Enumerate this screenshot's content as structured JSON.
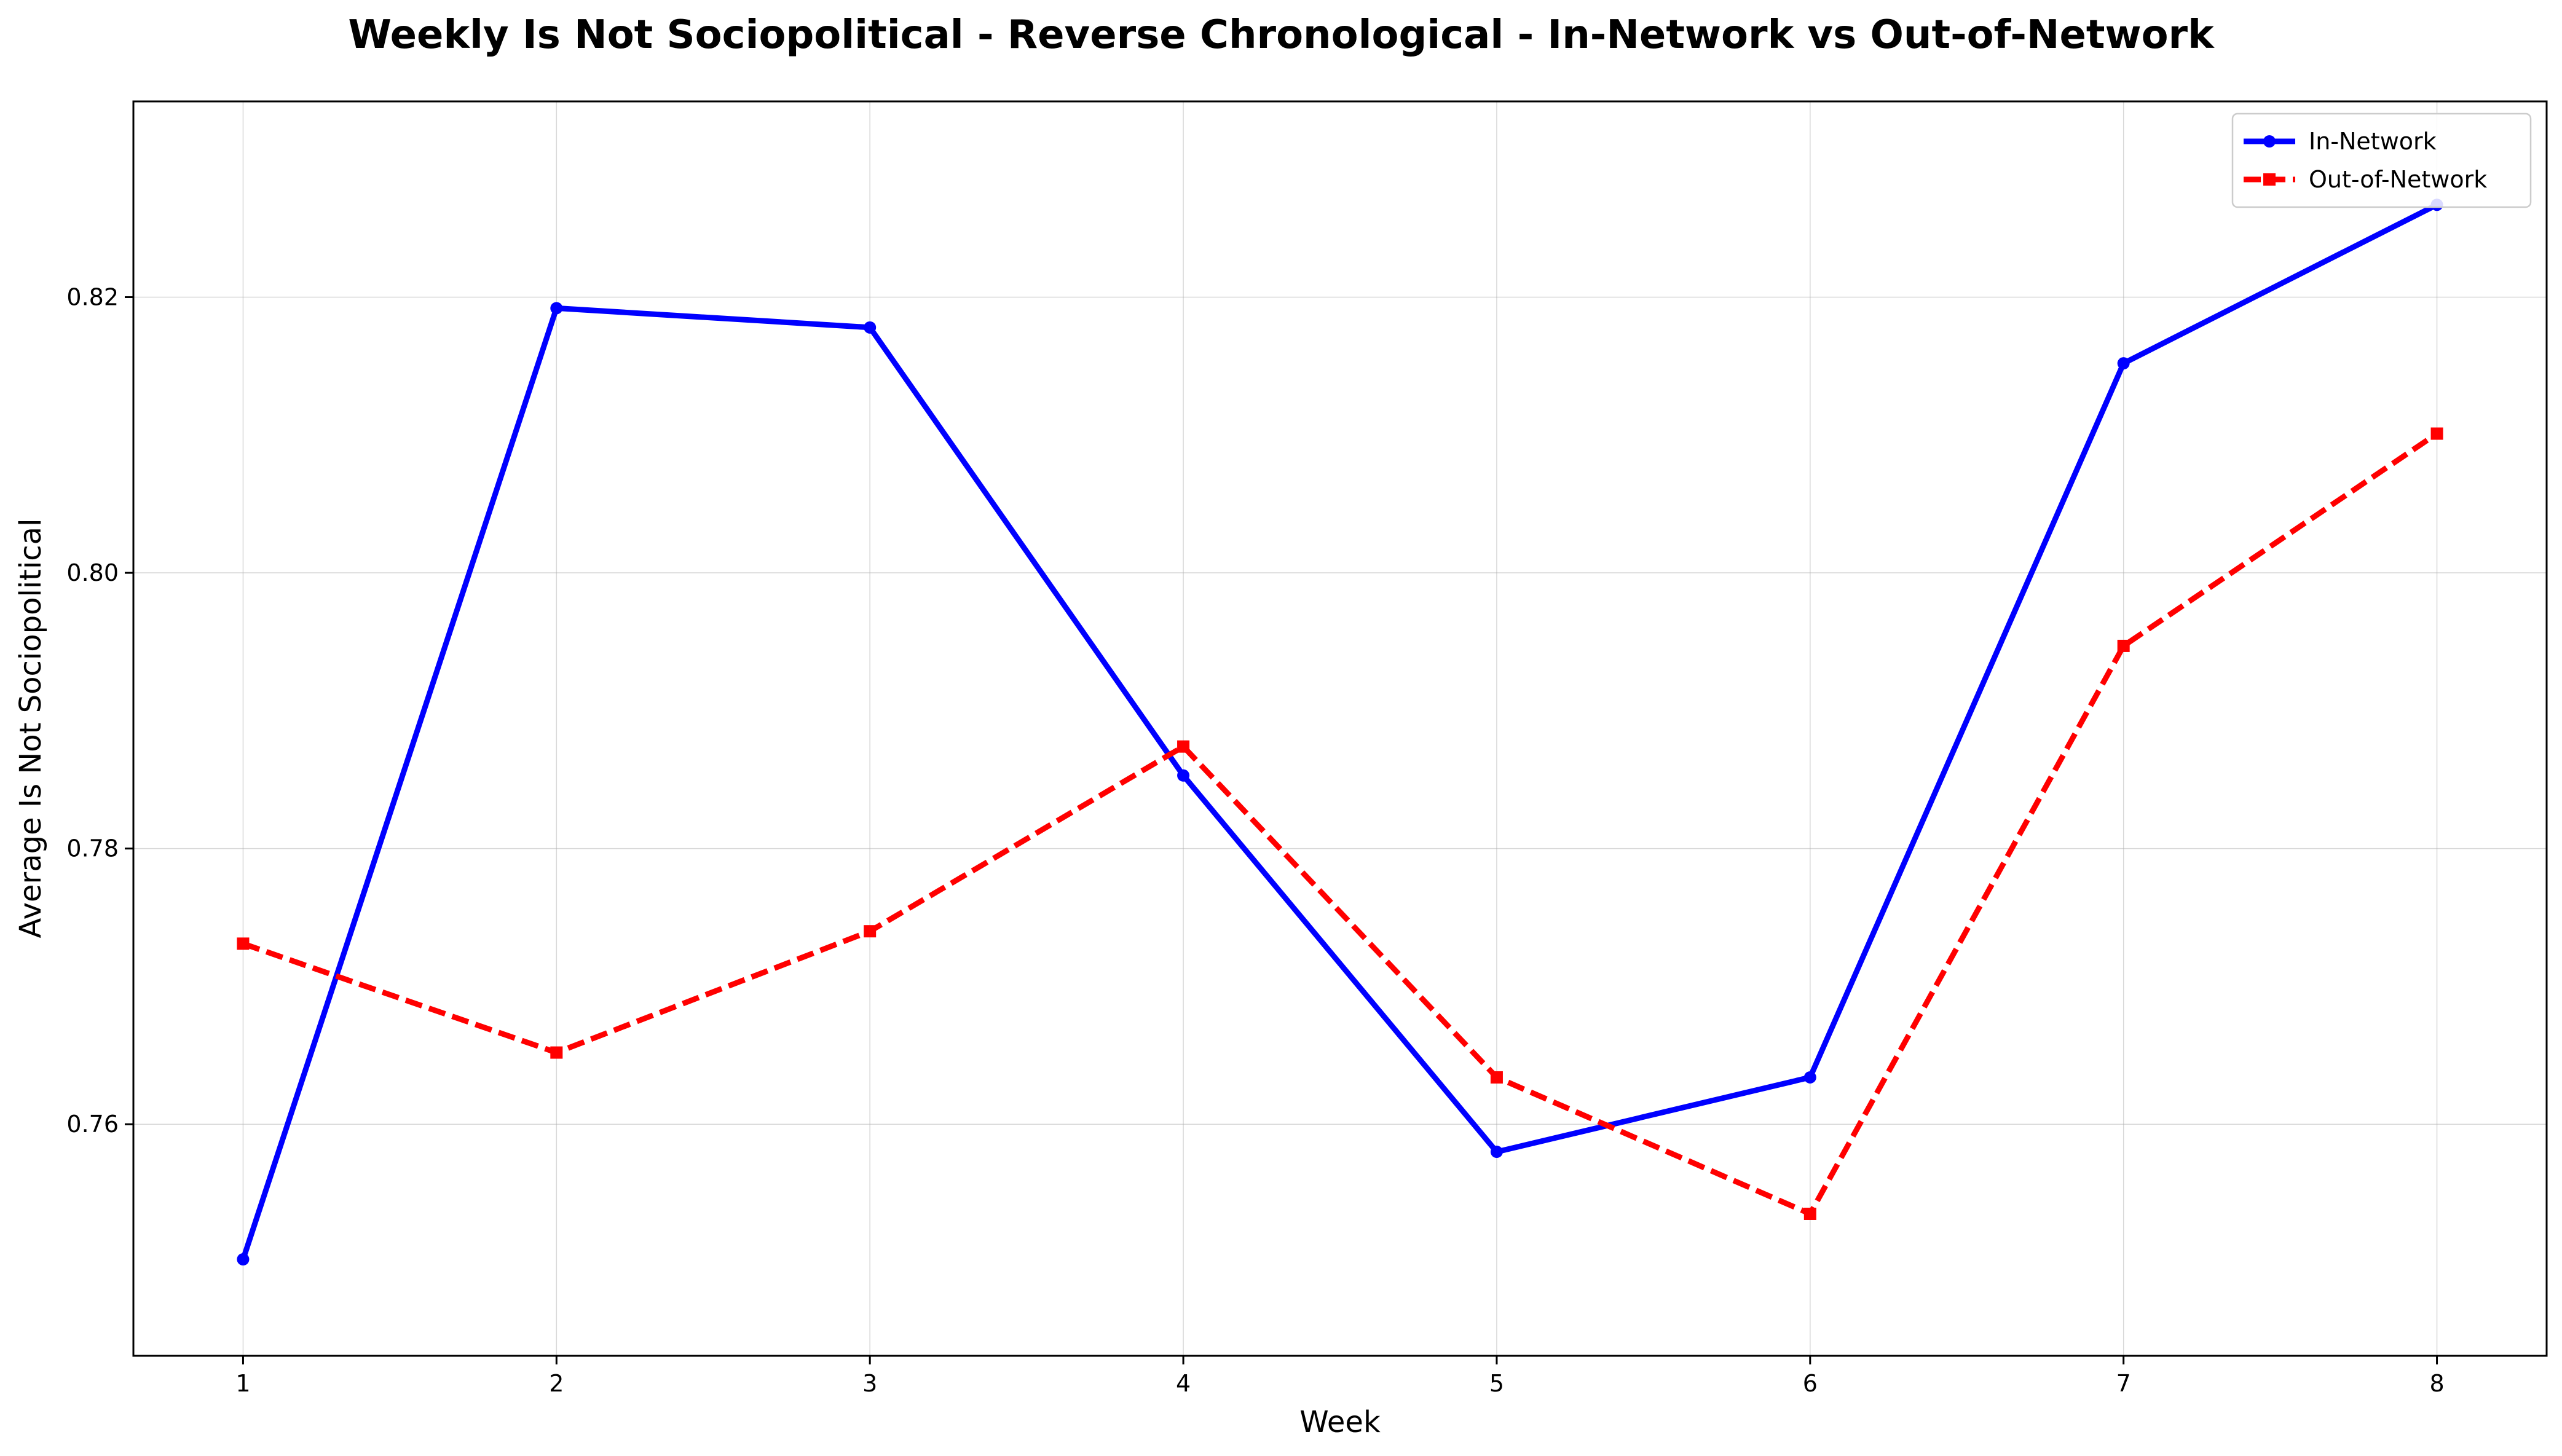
{
  "chart_data": {
    "type": "line",
    "title": "Weekly Is Not Sociopolitical - Reverse Chronological - In-Network vs Out-of-Network",
    "xlabel": "Week",
    "ylabel": "Average Is Not Sociopolitical",
    "x": [
      1,
      2,
      3,
      4,
      5,
      6,
      7,
      8
    ],
    "x_ticks": [
      "1",
      "2",
      "3",
      "4",
      "5",
      "6",
      "7",
      "8"
    ],
    "y_ticks": [
      "0.76",
      "0.78",
      "0.80",
      "0.82"
    ],
    "y_tick_values": [
      0.76,
      0.78,
      0.8,
      0.82
    ],
    "xlim": [
      0.65,
      8.35
    ],
    "ylim": [
      0.7432,
      0.8342
    ],
    "grid": true,
    "legend_position": "top-right",
    "series": [
      {
        "name": "In-Network",
        "values": [
          0.7502,
          0.8192,
          0.8178,
          0.7853,
          0.758,
          0.7634,
          0.8152,
          0.8267
        ],
        "color": "#0000ff",
        "line_style": "solid",
        "marker": "circle"
      },
      {
        "name": "Out-of-Network",
        "values": [
          0.7731,
          0.7652,
          0.774,
          0.7874,
          0.7634,
          0.7535,
          0.7947,
          0.8101
        ],
        "color": "#ff0000",
        "line_style": "dashed",
        "marker": "square"
      }
    ]
  }
}
